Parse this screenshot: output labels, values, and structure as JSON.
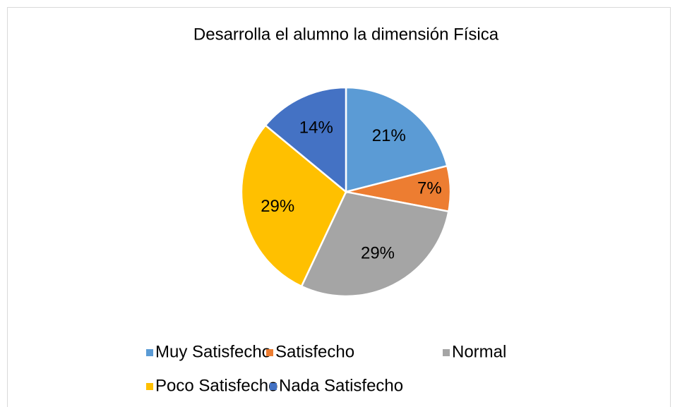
{
  "chart_data": {
    "type": "pie",
    "title": "Desarrolla el alumno la dimensión Física",
    "categories": [
      "Muy Satisfecho",
      "Satisfecho",
      "Normal",
      "Poco Satisfecho",
      "Nada Satisfecho"
    ],
    "values": [
      21,
      7,
      29,
      29,
      14
    ],
    "value_labels": [
      "21%",
      "7%",
      "29%",
      "29%",
      "14%"
    ],
    "colors": [
      "#5b9bd5",
      "#ed7d31",
      "#a5a5a5",
      "#ffc000",
      "#4472c4"
    ],
    "legend": "bottom"
  }
}
